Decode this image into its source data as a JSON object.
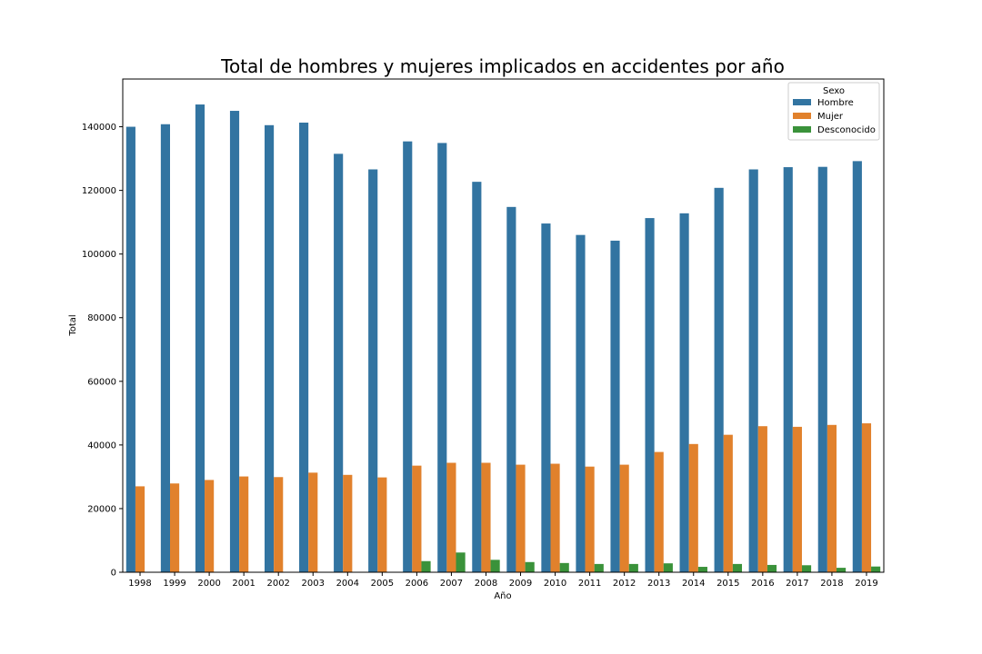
{
  "chart_data": {
    "type": "bar",
    "title": "Total de hombres y mujeres implicados en accidentes por año",
    "xlabel": "Año",
    "ylabel": "Total",
    "ylim": [
      0,
      155000
    ],
    "yticks": [
      0,
      20000,
      40000,
      60000,
      80000,
      100000,
      120000,
      140000
    ],
    "ytick_labels": [
      "0",
      "20000",
      "40000",
      "60000",
      "80000",
      "100000",
      "120000",
      "140000"
    ],
    "grid": false,
    "legend_placement": "top-right",
    "legend_title": "Sexo",
    "categories": [
      "1998",
      "1999",
      "2000",
      "2001",
      "2002",
      "2003",
      "2004",
      "2005",
      "2006",
      "2007",
      "2008",
      "2009",
      "2010",
      "2011",
      "2012",
      "2013",
      "2014",
      "2015",
      "2016",
      "2017",
      "2018",
      "2019"
    ],
    "series": [
      {
        "name": "Hombre",
        "color": "#3274a1",
        "values": [
          140000,
          140800,
          147000,
          145000,
          140500,
          141300,
          131500,
          126600,
          135400,
          134900,
          122700,
          114800,
          109600,
          106000,
          104200,
          111300,
          112800,
          120800,
          126600,
          127300,
          127400,
          129200
        ]
      },
      {
        "name": "Mujer",
        "color": "#e1812c",
        "values": [
          27000,
          27900,
          29000,
          30100,
          29900,
          31300,
          30600,
          29800,
          33500,
          34400,
          34400,
          33800,
          34100,
          33200,
          33800,
          37800,
          40300,
          43200,
          45900,
          45700,
          46300,
          46800
        ]
      },
      {
        "name": "Desconocido",
        "color": "#3a923a",
        "values": [
          0,
          0,
          0,
          0,
          0,
          0,
          0,
          0,
          3500,
          6200,
          3900,
          3200,
          2900,
          2600,
          2600,
          2800,
          1700,
          2600,
          2300,
          2200,
          1400,
          1800
        ]
      }
    ]
  }
}
